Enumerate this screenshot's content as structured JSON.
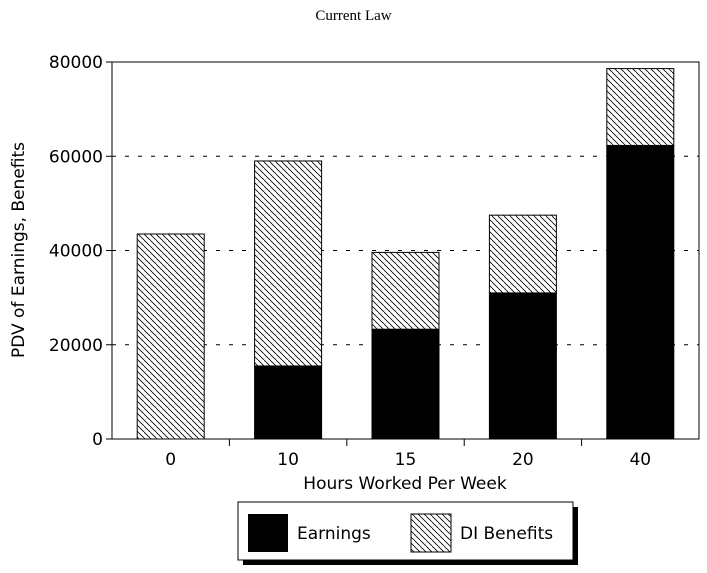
{
  "chart_data": {
    "type": "bar",
    "stacked": true,
    "title": "Current Law",
    "xlabel": "Hours Worked Per Week",
    "ylabel": "PDV of Earnings, Benefits",
    "categories": [
      "0",
      "10",
      "15",
      "20",
      "40"
    ],
    "ylim": [
      0,
      80000
    ],
    "yticks": [
      "0",
      "20000",
      "40000",
      "60000",
      "80000"
    ],
    "grid": "dashed horizontal lines at 20000, 40000, 60000",
    "legend_position": "bottom-center",
    "series": [
      {
        "name": "Earnings",
        "values": [
          0,
          15500,
          23300,
          31000,
          62300
        ],
        "fill": "solid",
        "color": "#000000"
      },
      {
        "name": "DI Benefits",
        "values": [
          43500,
          43500,
          16300,
          16500,
          16300
        ],
        "fill": "diagonal-hatch",
        "color": "#000000"
      }
    ]
  }
}
